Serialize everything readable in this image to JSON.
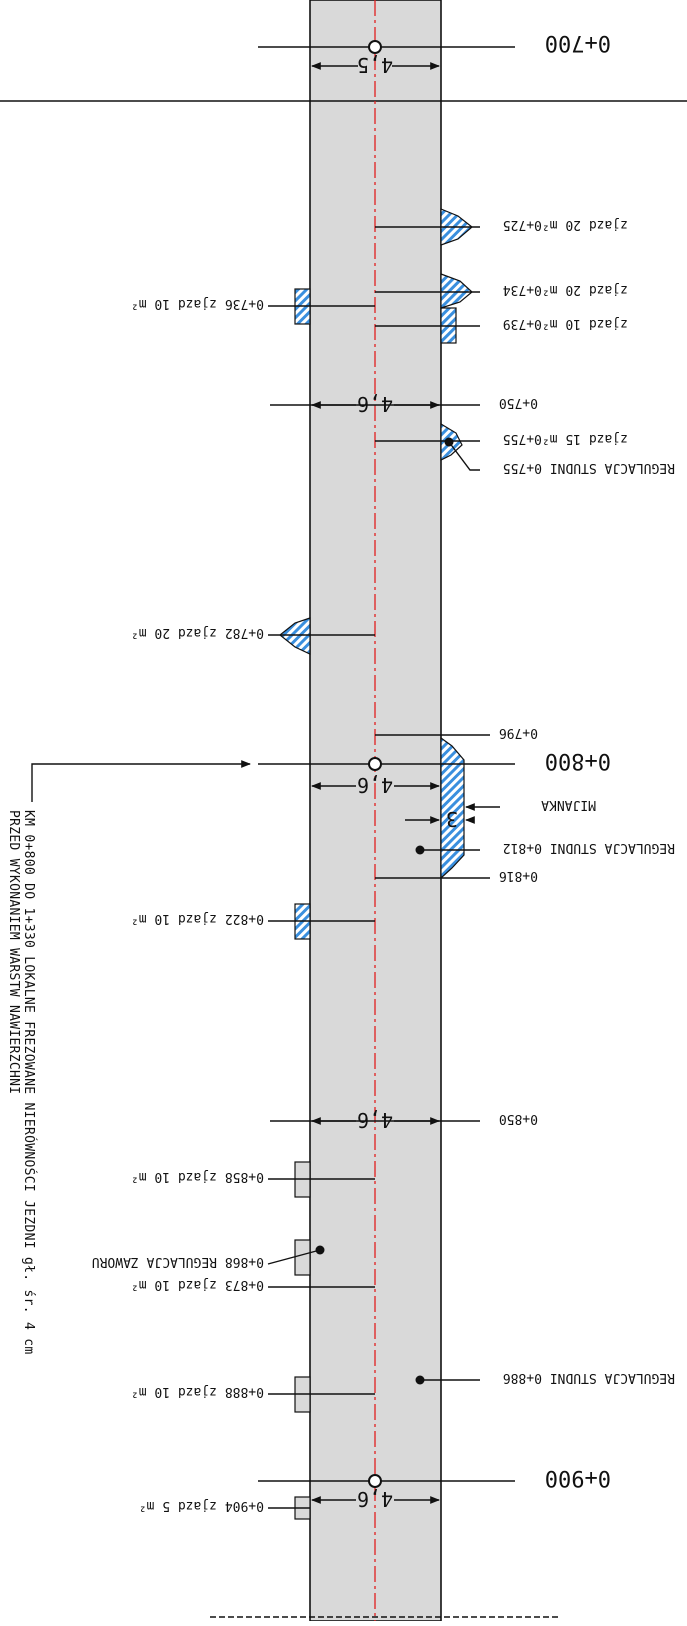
{
  "title_note": {
    "line1": "KM 0+800 DO 1+330 LOKALNE FREZOWANE NIERÓWNOŚCI JEZDNI gł. śr. 4 cm",
    "line2": "PRZED WYKONANIEM WARSTW NAWIERZCHNI"
  },
  "colors": {
    "road": "#d9d9d9",
    "hatch": "#3a8fde",
    "centerline": "#e02020",
    "ink": "#111111"
  },
  "stations": [
    {
      "text": "0+700",
      "big": true
    },
    {
      "text": "0+750"
    },
    {
      "text": "0+796"
    },
    {
      "text": "0+800",
      "big": true
    },
    {
      "text": "0+816"
    },
    {
      "text": "0+850"
    },
    {
      "text": "0+900",
      "big": true
    }
  ],
  "widths": [
    {
      "text": "4,5"
    },
    {
      "text": "4,6"
    },
    {
      "text": "4,6"
    },
    {
      "text": "4,6"
    },
    {
      "text": "4,6"
    }
  ],
  "mijanka": {
    "label": "MIJANKA",
    "width": "3"
  },
  "right_labels": [
    {
      "text": "zjazd 20 m²0+725"
    },
    {
      "text": "zjazd 20 m²0+734"
    },
    {
      "text": "zjazd 10 m²0+739"
    },
    {
      "text": "zjazd 15 m²0+755"
    },
    {
      "text": "REGULACJA STUDNI 0+755"
    },
    {
      "text": "REGULACJA STUDNI 0+812"
    },
    {
      "text": "REGULACJA STUDNI 0+886"
    }
  ],
  "left_labels": [
    {
      "text": "0+736 zjazd 10 m²"
    },
    {
      "text": "0+782 zjazd 20 m²"
    },
    {
      "text": "0+822 zjazd 10 m²"
    },
    {
      "text": "0+858 zjazd 10 m²"
    },
    {
      "text": "0+868 REGULACJA ZAWORU"
    },
    {
      "text": "0+873 zjazd 10 m²"
    },
    {
      "text": "0+888 zjazd 10 m²"
    },
    {
      "text": "0+904 zjazd 5 m²"
    }
  ]
}
